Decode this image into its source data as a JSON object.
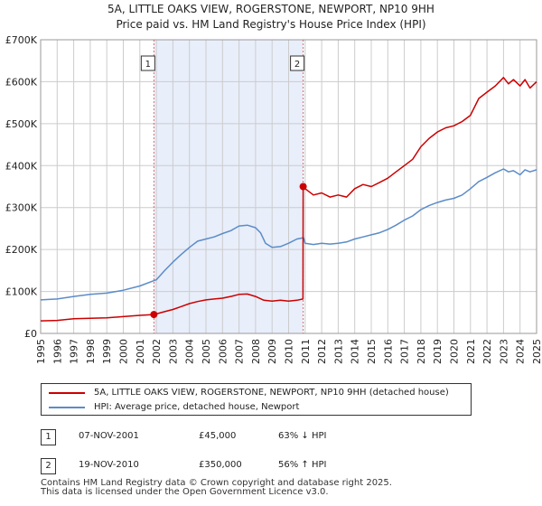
{
  "title_line1": "5A, LITTLE OAKS VIEW, ROGERSTONE, NEWPORT, NP10 9HH",
  "title_line2": "Price paid vs. HM Land Registry's House Price Index (HPI)",
  "colors": {
    "property": "#cc0000",
    "hpi": "#5b8cc8",
    "shade": "#e8eefa",
    "marker_line": "#e06666",
    "grid": "#cccccc"
  },
  "chart_data": {
    "type": "line",
    "xlim": [
      1995,
      2025
    ],
    "ylim": [
      0,
      700000
    ],
    "yticks": [
      0,
      100000,
      200000,
      300000,
      400000,
      500000,
      600000,
      700000
    ],
    "ytick_labels": [
      "£0",
      "£100K",
      "£200K",
      "£300K",
      "£400K",
      "£500K",
      "£600K",
      "£700K"
    ],
    "xticks": [
      1995,
      1996,
      1997,
      1998,
      1999,
      2000,
      2001,
      2002,
      2003,
      2004,
      2005,
      2006,
      2007,
      2008,
      2009,
      2010,
      2011,
      2012,
      2013,
      2014,
      2015,
      2016,
      2017,
      2018,
      2019,
      2020,
      2021,
      2022,
      2023,
      2024,
      2025
    ],
    "xtick_labels": [
      "1995",
      "1996",
      "1997",
      "1998",
      "1999",
      "2000",
      "2001",
      "2002",
      "2003",
      "2004",
      "2005",
      "2006",
      "2007",
      "2008",
      "2009",
      "2010",
      "2011",
      "2012",
      "2013",
      "2014",
      "2015",
      "2016",
      "2017",
      "2018",
      "2019",
      "2020",
      "2021",
      "2022",
      "2023",
      "2024",
      "2025"
    ],
    "shaded_period": [
      2001.85,
      2010.88
    ],
    "sales": [
      {
        "label": "1",
        "x": 2001.85,
        "y": 45000
      },
      {
        "label": "2",
        "x": 2010.88,
        "y": 350000
      }
    ],
    "series": [
      {
        "name": "5A, LITTLE OAKS VIEW, ROGERSTONE, NEWPORT, NP10 9HH (detached house)",
        "x": [
          1995,
          1996,
          1997,
          1998,
          1999,
          2000,
          2001,
          2001.85,
          2002.5,
          2003,
          2003.5,
          2004,
          2004.5,
          2005,
          2005.5,
          2006,
          2006.5,
          2007,
          2007.5,
          2008,
          2008.5,
          2009,
          2009.5,
          2010,
          2010.5,
          2010.87,
          2010.88,
          2011,
          2011.5,
          2012,
          2012.5,
          2013,
          2013.5,
          2014,
          2014.5,
          2015,
          2015.5,
          2016,
          2016.5,
          2017,
          2017.5,
          2018,
          2018.5,
          2019,
          2019.5,
          2020,
          2020.5,
          2021,
          2021.5,
          2022,
          2022.5,
          2023,
          2023.3,
          2023.6,
          2024,
          2024.3,
          2024.6,
          2025
        ],
        "y": [
          30000,
          31000,
          35000,
          36000,
          37000,
          40000,
          43000,
          45000,
          52000,
          57000,
          64000,
          71000,
          76000,
          80000,
          82000,
          84000,
          88000,
          93000,
          94000,
          88000,
          79000,
          77000,
          79000,
          77000,
          79000,
          82000,
          350000,
          345000,
          330000,
          335000,
          325000,
          330000,
          325000,
          345000,
          355000,
          350000,
          360000,
          370000,
          385000,
          400000,
          415000,
          445000,
          465000,
          480000,
          490000,
          495000,
          505000,
          520000,
          560000,
          575000,
          590000,
          610000,
          595000,
          605000,
          590000,
          605000,
          585000,
          600000
        ]
      },
      {
        "name": "HPI: Average price, detached house, Newport",
        "x": [
          1995,
          1996,
          1997,
          1998,
          1999,
          2000,
          2001,
          2002,
          2002.5,
          2003,
          2003.5,
          2004,
          2004.5,
          2005,
          2005.5,
          2006,
          2006.5,
          2007,
          2007.5,
          2008,
          2008.3,
          2008.6,
          2009,
          2009.5,
          2010,
          2010.5,
          2010.9,
          2011,
          2011.5,
          2012,
          2012.5,
          2013,
          2013.5,
          2014,
          2014.5,
          2015,
          2015.5,
          2016,
          2016.5,
          2017,
          2017.5,
          2018,
          2018.5,
          2019,
          2019.5,
          2020,
          2020.5,
          2021,
          2021.5,
          2022,
          2022.5,
          2023,
          2023.3,
          2023.6,
          2024,
          2024.3,
          2024.6,
          2025
        ],
        "y": [
          80000,
          82000,
          88000,
          93000,
          96000,
          103000,
          113000,
          128000,
          150000,
          170000,
          188000,
          205000,
          220000,
          225000,
          230000,
          238000,
          245000,
          256000,
          258000,
          252000,
          240000,
          215000,
          205000,
          207000,
          215000,
          225000,
          228000,
          215000,
          212000,
          215000,
          213000,
          215000,
          218000,
          225000,
          230000,
          235000,
          240000,
          248000,
          258000,
          270000,
          280000,
          295000,
          305000,
          312000,
          318000,
          322000,
          330000,
          345000,
          362000,
          372000,
          383000,
          392000,
          385000,
          388000,
          378000,
          390000,
          385000,
          390000
        ]
      }
    ]
  },
  "legend": {
    "property_label": "5A, LITTLE OAKS VIEW, ROGERSTONE, NEWPORT, NP10 9HH (detached house)",
    "hpi_label": "HPI: Average price, detached house, Newport"
  },
  "transactions": [
    {
      "badge": "1",
      "date": "07-NOV-2001",
      "price": "£45,000",
      "hpi": "63% ↓ HPI"
    },
    {
      "badge": "2",
      "date": "19-NOV-2010",
      "price": "£350,000",
      "hpi": "56% ↑ HPI"
    }
  ],
  "footer_line1": "Contains HM Land Registry data © Crown copyright and database right 2025.",
  "footer_line2": "This data is licensed under the Open Government Licence v3.0."
}
